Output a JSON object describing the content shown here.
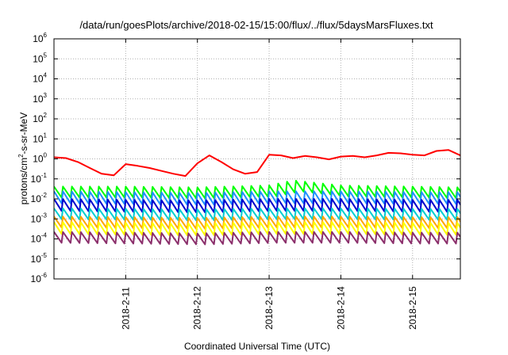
{
  "chart_data": {
    "type": "line",
    "title": "/data/run/goesPlots/archive/2018-02-15/15:00/flux/../flux/5daysMarsFluxes.txt",
    "xlabel": "Coordinated Universal Time (UTC)",
    "ylabel_parts": [
      "protons/cm",
      "2",
      "-s-sr-MeV"
    ],
    "y_scale": "log",
    "ylim": [
      1e-06,
      1000000.0
    ],
    "y_ticks": [
      {
        "base": "10",
        "exp": "-6",
        "value": 1e-06
      },
      {
        "base": "10",
        "exp": "-5",
        "value": 1e-05
      },
      {
        "base": "10",
        "exp": "-4",
        "value": 0.0001
      },
      {
        "base": "10",
        "exp": "-3",
        "value": 0.001
      },
      {
        "base": "10",
        "exp": "-2",
        "value": 0.01
      },
      {
        "base": "10",
        "exp": "-1",
        "value": 0.1
      },
      {
        "base": "10",
        "exp": "0",
        "value": 1
      },
      {
        "base": "10",
        "exp": "1",
        "value": 10
      },
      {
        "base": "10",
        "exp": "2",
        "value": 100
      },
      {
        "base": "10",
        "exp": "3",
        "value": 1000
      },
      {
        "base": "10",
        "exp": "4",
        "value": 10000
      },
      {
        "base": "10",
        "exp": "5",
        "value": 100000
      },
      {
        "base": "10",
        "exp": "6",
        "value": 1000000
      }
    ],
    "xlim": [
      "2018-02-10T00:00",
      "2018-02-15T16:00"
    ],
    "x_ticks": [
      {
        "label": "2018-2-11",
        "value": "2018-02-11T00:00"
      },
      {
        "label": "2018-2-12",
        "value": "2018-02-12T00:00"
      },
      {
        "label": "2018-2-13",
        "value": "2018-02-13T00:00"
      },
      {
        "label": "2018-2-14",
        "value": "2018-02-14T00:00"
      },
      {
        "label": "2018-2-15",
        "value": "2018-02-15T00:00"
      }
    ],
    "grid": true,
    "legend": "none",
    "series": [
      {
        "color": "#ff0000",
        "x": [
          "2018-02-10T00:00",
          "2018-02-10T04:00",
          "2018-02-10T08:00",
          "2018-02-10T12:00",
          "2018-02-10T16:00",
          "2018-02-10T20:00",
          "2018-02-11T00:00",
          "2018-02-11T04:00",
          "2018-02-11T08:00",
          "2018-02-11T12:00",
          "2018-02-11T16:00",
          "2018-02-11T20:00",
          "2018-02-12T00:00",
          "2018-02-12T04:00",
          "2018-02-12T08:00",
          "2018-02-12T12:00",
          "2018-02-12T16:00",
          "2018-02-12T20:00",
          "2018-02-13T00:00",
          "2018-02-13T04:00",
          "2018-02-13T08:00",
          "2018-02-13T12:00",
          "2018-02-13T16:00",
          "2018-02-13T20:00",
          "2018-02-14T00:00",
          "2018-02-14T04:00",
          "2018-02-14T08:00",
          "2018-02-14T12:00",
          "2018-02-14T16:00",
          "2018-02-14T20:00",
          "2018-02-15T00:00",
          "2018-02-15T04:00",
          "2018-02-15T08:00",
          "2018-02-15T12:00",
          "2018-02-15T16:00"
        ],
        "y": [
          1.2,
          1.1,
          0.7,
          0.35,
          0.18,
          0.15,
          0.55,
          0.45,
          0.35,
          0.25,
          0.18,
          0.14,
          0.6,
          1.5,
          0.7,
          0.3,
          0.18,
          0.22,
          1.6,
          1.5,
          1.1,
          1.4,
          1.2,
          0.95,
          1.3,
          1.4,
          1.2,
          1.5,
          2.0,
          1.9,
          1.6,
          1.5,
          2.5,
          2.8,
          1.5
        ],
        "teeth": 0.75
      },
      {
        "color": "#00ff00",
        "x": [
          "2018-02-10T00:00",
          "2018-02-11T00:00",
          "2018-02-12T00:00",
          "2018-02-13T00:00",
          "2018-02-13T08:00",
          "2018-02-14T00:00",
          "2018-02-15T00:00",
          "2018-02-15T16:00"
        ],
        "y": [
          0.022,
          0.022,
          0.02,
          0.025,
          0.045,
          0.025,
          0.022,
          0.02
        ],
        "teeth": 0.55
      },
      {
        "color": "#1e90ff",
        "x": [
          "2018-02-10T00:00",
          "2018-02-11T00:00",
          "2018-02-12T00:00",
          "2018-02-13T00:00",
          "2018-02-14T00:00",
          "2018-02-15T00:00",
          "2018-02-15T16:00"
        ],
        "y": [
          0.012,
          0.011,
          0.01,
          0.012,
          0.012,
          0.011,
          0.011
        ],
        "teeth": 0.6
      },
      {
        "color": "#0000cd",
        "x": [
          "2018-02-10T00:00",
          "2018-02-11T00:00",
          "2018-02-12T00:00",
          "2018-02-13T00:00",
          "2018-02-14T00:00",
          "2018-02-15T00:00",
          "2018-02-15T16:00"
        ],
        "y": [
          0.005,
          0.0045,
          0.0042,
          0.005,
          0.005,
          0.0045,
          0.0045
        ],
        "teeth": 0.6
      },
      {
        "color": "#00ced1",
        "x": [
          "2018-02-10T00:00",
          "2018-02-11T00:00",
          "2018-02-12T00:00",
          "2018-02-13T00:00",
          "2018-02-14T00:00",
          "2018-02-15T00:00",
          "2018-02-15T16:00"
        ],
        "y": [
          0.0018,
          0.0017,
          0.0016,
          0.0018,
          0.0018,
          0.0017,
          0.0017
        ],
        "teeth": 0.55
      },
      {
        "color": "#ffa500",
        "x": [
          "2018-02-10T00:00",
          "2018-02-11T00:00",
          "2018-02-12T00:00",
          "2018-02-13T00:00",
          "2018-02-14T00:00",
          "2018-02-15T00:00",
          "2018-02-15T16:00"
        ],
        "y": [
          0.0007,
          0.00065,
          0.0006,
          0.0007,
          0.0007,
          0.00065,
          0.00065
        ],
        "teeth": 0.55
      },
      {
        "color": "#ffff00",
        "x": [
          "2018-02-10T00:00",
          "2018-02-11T00:00",
          "2018-02-12T00:00",
          "2018-02-13T00:00",
          "2018-02-14T00:00",
          "2018-02-15T00:00",
          "2018-02-15T16:00"
        ],
        "y": [
          0.00035,
          0.00032,
          0.0003,
          0.00035,
          0.00035,
          0.00032,
          0.00032
        ],
        "teeth": 0.6
      },
      {
        "color": "#8b2f6b",
        "x": [
          "2018-02-10T00:00",
          "2018-02-11T00:00",
          "2018-02-12T00:00",
          "2018-02-13T00:00",
          "2018-02-14T00:00",
          "2018-02-15T00:00",
          "2018-02-15T16:00"
        ],
        "y": [
          0.00012,
          0.00011,
          0.0001,
          0.00012,
          0.00012,
          0.00011,
          0.00011
        ],
        "teeth": 0.55
      }
    ]
  }
}
